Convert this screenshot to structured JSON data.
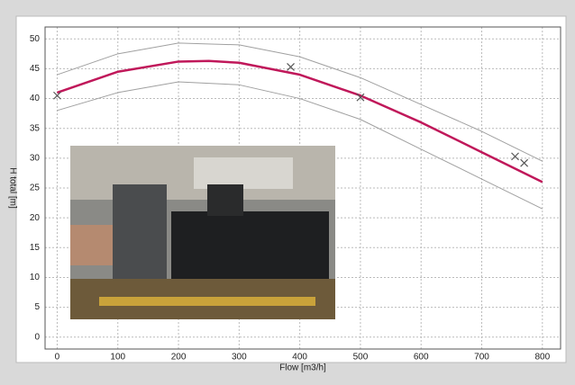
{
  "chart_data": {
    "type": "line",
    "xlabel": "Flow [m3/h]",
    "ylabel": "H total [m]",
    "xlim": [
      -20,
      830
    ],
    "ylim": [
      -2,
      52
    ],
    "xticks": [
      0,
      100,
      200,
      300,
      400,
      500,
      600,
      700,
      800
    ],
    "yticks": [
      0,
      5,
      10,
      15,
      20,
      25,
      30,
      35,
      40,
      45,
      50
    ],
    "grid": true,
    "series": [
      {
        "color": "#c0185a",
        "x": [
          0,
          100,
          200,
          250,
          300,
          400,
          500,
          600,
          700,
          800
        ],
        "values": [
          41,
          44.5,
          46.2,
          46.3,
          46,
          44,
          40.5,
          36,
          31,
          26
        ]
      },
      {
        "color": "#a0a0a0",
        "x": [
          0,
          100,
          200,
          300,
          400,
          500,
          600,
          700,
          800
        ],
        "values": [
          44,
          47.5,
          49.3,
          49,
          47,
          43.5,
          39,
          34.5,
          29.5
        ]
      },
      {
        "color": "#a0a0a0",
        "x": [
          0,
          100,
          200,
          300,
          400,
          500,
          600,
          700,
          800
        ],
        "values": [
          38,
          41,
          42.8,
          42.3,
          40,
          36.5,
          31.5,
          26.5,
          21.5
        ]
      },
      {
        "type": "scatter",
        "color": "#555555",
        "x": [
          0,
          385,
          500,
          755,
          770
        ],
        "values": [
          40.5,
          45.3,
          40.2,
          30.3,
          29.2
        ]
      }
    ]
  }
}
